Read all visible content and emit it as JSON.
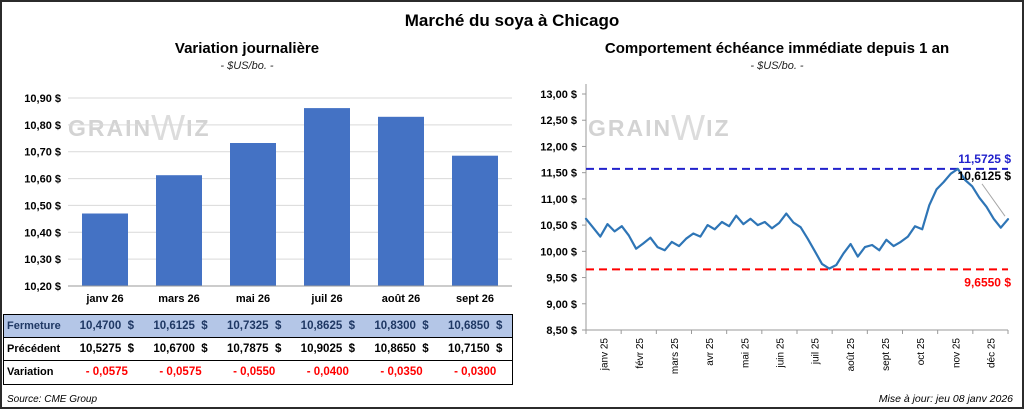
{
  "page": {
    "title": "Marché du soya à Chicago",
    "source": "Source: CME Group",
    "updated": "Mise à jour: jeu 08 janv 2026",
    "watermark_parts": [
      "GRAIN",
      "W",
      "IZ"
    ]
  },
  "chart_data": [
    {
      "type": "bar",
      "title": "Variation journalière",
      "subtitle": "- $US/bo. -",
      "categories": [
        "janv 26",
        "mars 26",
        "mai 26",
        "juil 26",
        "août 26",
        "sept 26"
      ],
      "values": [
        10.47,
        10.6125,
        10.7325,
        10.8625,
        10.83,
        10.685
      ],
      "ylim": [
        10.2,
        10.9
      ],
      "ytick_step": 0.1,
      "ytick_labels": [
        "10,20 $",
        "10,30 $",
        "10,40 $",
        "10,50 $",
        "10,60 $",
        "10,70 $",
        "10,80 $",
        "10,90 $"
      ],
      "bar_color": "#4472C4",
      "grid": true,
      "legend": "none"
    },
    {
      "type": "line",
      "title": "Comportement échéance immédiate depuis 1 an",
      "subtitle": "- $US/bo. -",
      "x_labels": [
        "janv 25",
        "févr 25",
        "mars 25",
        "avr 25",
        "mai 25",
        "juin 25",
        "juil 25",
        "août 25",
        "sept 25",
        "oct 25",
        "nov 25",
        "déc 25"
      ],
      "values": [
        10.62,
        10.45,
        10.28,
        10.52,
        10.38,
        10.48,
        10.3,
        10.05,
        10.15,
        10.26,
        10.08,
        10.02,
        10.18,
        10.1,
        10.24,
        10.34,
        10.28,
        10.5,
        10.42,
        10.56,
        10.48,
        10.68,
        10.52,
        10.62,
        10.5,
        10.56,
        10.44,
        10.54,
        10.72,
        10.55,
        10.46,
        10.24,
        10.0,
        9.76,
        9.67,
        9.74,
        9.96,
        10.14,
        9.9,
        10.08,
        10.12,
        10.02,
        10.22,
        10.1,
        10.18,
        10.28,
        10.48,
        10.42,
        10.88,
        11.18,
        11.32,
        11.48,
        11.5725,
        11.36,
        11.24,
        11.02,
        10.85,
        10.62,
        10.45,
        10.6125
      ],
      "ylim": [
        8.5,
        13.0
      ],
      "ytick_step": 0.5,
      "ytick_labels": [
        "8,50 $",
        "9,00 $",
        "9,50 $",
        "10,00 $",
        "10,50 $",
        "11,00 $",
        "11,50 $",
        "12,00 $",
        "12,50 $",
        "13,00 $"
      ],
      "line_color": "#2E75B6",
      "grid": false,
      "legend": "none",
      "reference_lines": [
        {
          "value": 11.5725,
          "label": "11,5725 $",
          "color": "#2222CC",
          "label_dy": -6
        },
        {
          "value": 9.655,
          "label": "9,6550 $",
          "color": "#FF0000",
          "label_dy": 17
        }
      ],
      "end_label": {
        "value": 10.6125,
        "label": "10,6125 $",
        "color": "#000000"
      }
    }
  ],
  "table": {
    "rows": [
      {
        "style": "fermeture",
        "label": "Fermeture",
        "values": [
          "10,4700  $",
          "10,6125  $",
          "10,7325  $",
          "10,8625  $",
          "10,8300  $",
          "10,6850  $"
        ]
      },
      {
        "style": "precedent",
        "label": "Précédent",
        "values": [
          "10,5275  $",
          "10,6700  $",
          "10,7875  $",
          "10,9025  $",
          "10,8650  $",
          "10,7150  $"
        ]
      },
      {
        "style": "variation",
        "label": "Variation",
        "values": [
          "- 0,0575",
          "- 0,0575",
          "- 0,0550",
          "- 0,0400",
          "- 0,0350",
          "- 0,0300"
        ]
      }
    ]
  }
}
